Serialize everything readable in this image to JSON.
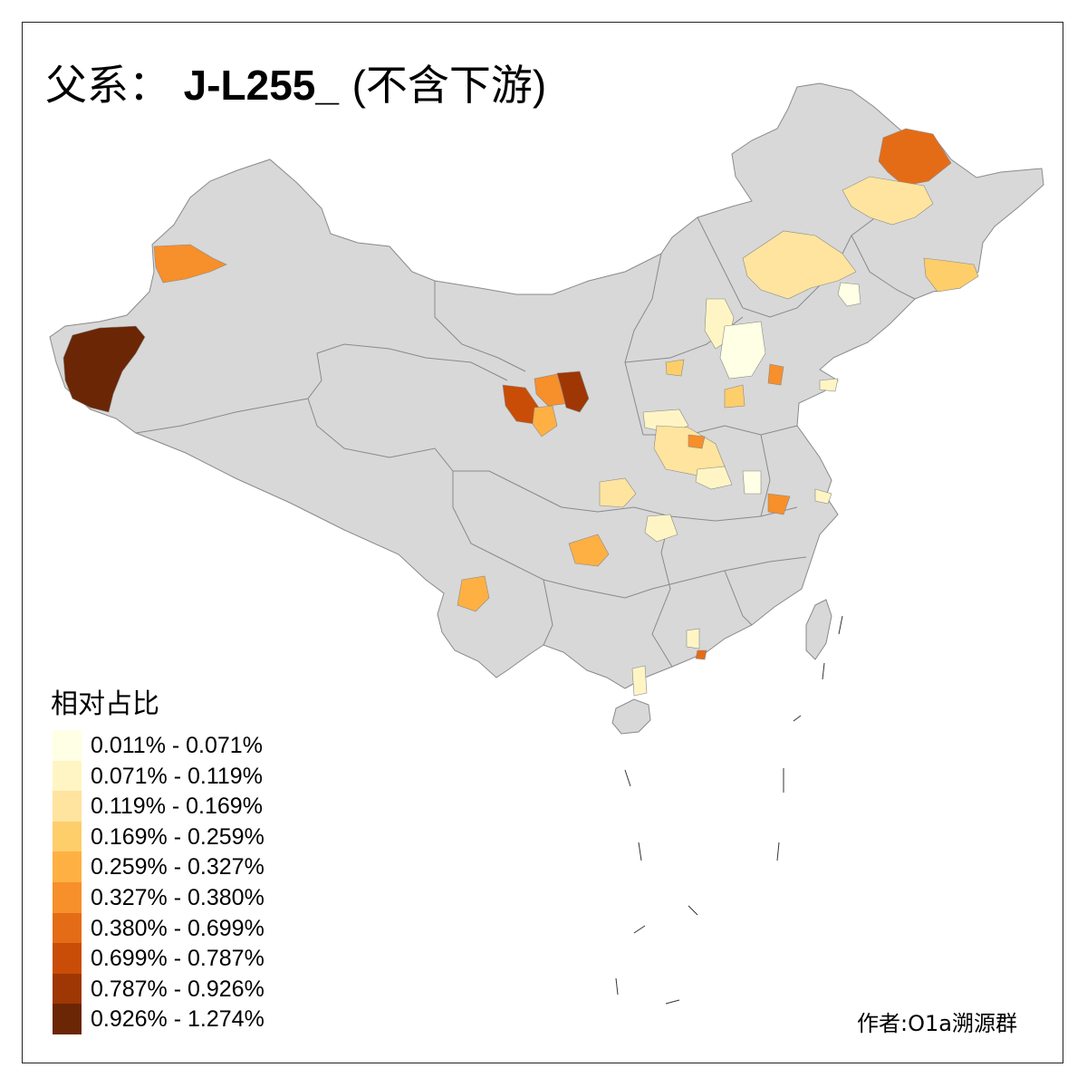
{
  "title": {
    "prefix": "父系：",
    "haplogroup": "J-L255_",
    "note": "(不含下游)"
  },
  "legend": {
    "title": "相对占比",
    "classes": [
      {
        "label": "0.011% - 0.071%",
        "color": "#ffffe5"
      },
      {
        "label": "0.071% - 0.119%",
        "color": "#fff5c4"
      },
      {
        "label": "0.119% - 0.169%",
        "color": "#fee49e"
      },
      {
        "label": "0.169% - 0.259%",
        "color": "#fece6b"
      },
      {
        "label": "0.259% - 0.327%",
        "color": "#feb043"
      },
      {
        "label": "0.327% - 0.380%",
        "color": "#f78f2a"
      },
      {
        "label": "0.380% - 0.699%",
        "color": "#e56c16"
      },
      {
        "label": "0.699% - 0.787%",
        "color": "#c94d06"
      },
      {
        "label": "0.787% - 0.926%",
        "color": "#9e3704"
      },
      {
        "label": "0.926% - 1.274%",
        "color": "#6b2605"
      }
    ]
  },
  "credit": "作者:O1a溯源群",
  "colors": {
    "land": "#d8d8d8",
    "border": "#8a8a8a",
    "frame": "#222222",
    "background": "#ffffff"
  }
}
